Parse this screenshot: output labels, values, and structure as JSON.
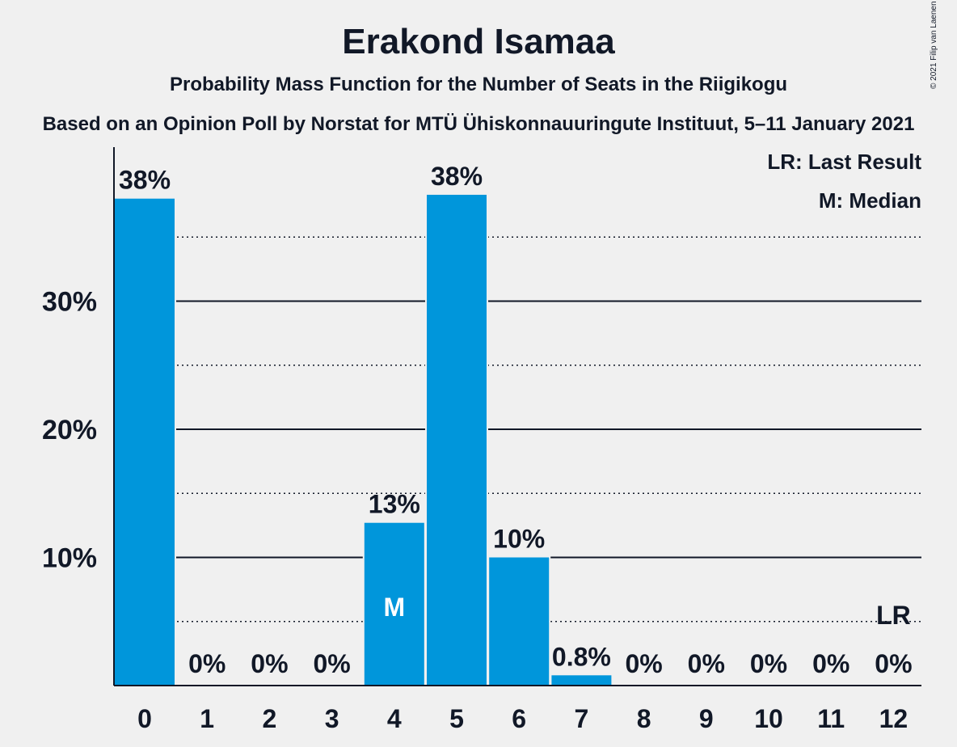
{
  "chart_data": {
    "type": "bar",
    "title": "Erakond Isamaa",
    "subtitle": "Probability Mass Function for the Number of Seats in the Riigikogu",
    "subtitle2": "Based on an Opinion Poll by Norstat for MTÜ Ühiskonnauuringute Instituut, 5–11 January 2021",
    "copyright": "© 2021 Filip van Laenen",
    "legend": [
      "LR: Last Result",
      "M: Median"
    ],
    "categories": [
      "0",
      "1",
      "2",
      "3",
      "4",
      "5",
      "6",
      "7",
      "8",
      "9",
      "10",
      "11",
      "12"
    ],
    "values": [
      38.0,
      0,
      0,
      0,
      12.7,
      38.3,
      10.0,
      0.8,
      0,
      0,
      0,
      0,
      0
    ],
    "labels": [
      "38%",
      "0%",
      "0%",
      "0%",
      "13%",
      "38%",
      "10%",
      "0.8%",
      "0%",
      "0%",
      "0%",
      "0%",
      "0%"
    ],
    "yticks": [
      10,
      20,
      30
    ],
    "ytick_labels": [
      "10%",
      "20%",
      "30%"
    ],
    "minor_gridlines": [
      5,
      15,
      25,
      35
    ],
    "ylim": [
      0,
      42
    ],
    "median_category": "4",
    "median_label": "M",
    "last_result_category": "12",
    "last_result_label": "LR",
    "bar_color": "#0096db",
    "background": "#f0f0f0",
    "text_color": "#111827"
  }
}
